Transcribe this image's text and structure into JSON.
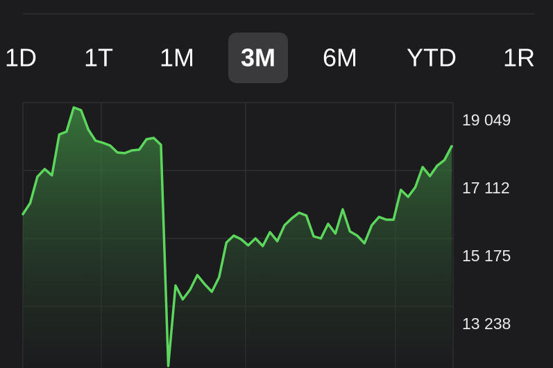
{
  "tabs": [
    "1D",
    "1T",
    "1M",
    "3M",
    "6M",
    "YTD",
    "1R"
  ],
  "selected_tab": "3M",
  "chart_data": {
    "type": "area",
    "color": "#5cd65c",
    "x": [
      0,
      1,
      2,
      3,
      4,
      5,
      6,
      7,
      8,
      9,
      10,
      11,
      12,
      13,
      14,
      15,
      16,
      17,
      18,
      19,
      20,
      21,
      22,
      23,
      24,
      25,
      26,
      27,
      28,
      29,
      30,
      31,
      32,
      33,
      34,
      35,
      36,
      37,
      38,
      39,
      40,
      41,
      42,
      43,
      44,
      45,
      46,
      47,
      48,
      49,
      50,
      51,
      52,
      53,
      54,
      55,
      56,
      57,
      58,
      59
    ],
    "values": [
      15867,
      16183,
      16934,
      17152,
      16974,
      18140,
      18219,
      18911,
      18832,
      18278,
      17962,
      17903,
      17824,
      17626,
      17606,
      17685,
      17705,
      18001,
      18041,
      17843,
      11538,
      13831,
      13436,
      13712,
      14128,
      13871,
      13653,
      14068,
      15056,
      15254,
      15155,
      14977,
      15175,
      14958,
      15353,
      15096,
      15551,
      15748,
      15906,
      15827,
      15234,
      15175,
      15590,
      15313,
      16005,
      15373,
      15254,
      15037,
      15551,
      15788,
      15709,
      15709,
      16559,
      16361,
      16638,
      17211,
      16954,
      17250,
      17409,
      17804
    ],
    "xlim": [
      0,
      59
    ],
    "ylim": [
      11479,
      19049
    ],
    "yticks": [
      {
        "value": 19049,
        "label": "19 049"
      },
      {
        "value": 17112,
        "label": "17 112"
      },
      {
        "value": 15175,
        "label": "15 175"
      },
      {
        "value": 13238,
        "label": "13 238"
      }
    ],
    "grid": true
  }
}
